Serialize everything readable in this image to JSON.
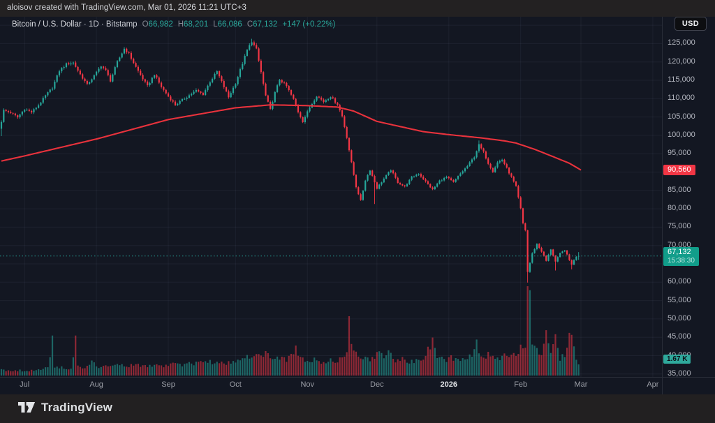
{
  "attribution": "aloisov created with TradingView.com, Mar 01, 2026 11:21 UTC+3",
  "bottom_bar": {
    "brand": "TradingView"
  },
  "currency_button": {
    "label": "USD"
  },
  "legend": {
    "title": "Bitcoin / U.S. Dollar",
    "separator": "·",
    "interval": "1D",
    "exchange": "Bitstamp",
    "ohlc": [
      [
        "O",
        "66,982"
      ],
      [
        "H",
        "68,201"
      ],
      [
        "L",
        "66,086"
      ],
      [
        "C",
        "67,132"
      ]
    ],
    "change": "+147 (+0.22%)"
  },
  "price_axis": {
    "labels": [
      {
        "text": "125,000",
        "price": 125000
      },
      {
        "text": "120,000",
        "price": 120000
      },
      {
        "text": "115,000",
        "price": 115000
      },
      {
        "text": "110,000",
        "price": 110000
      },
      {
        "text": "105,000",
        "price": 105000
      },
      {
        "text": "100,000",
        "price": 100000
      },
      {
        "text": "95,000",
        "price": 95000
      },
      {
        "text": "85,000",
        "price": 85000
      },
      {
        "text": "80,000",
        "price": 80000
      },
      {
        "text": "75,000",
        "price": 75000
      },
      {
        "text": "70,000",
        "price": 70000
      },
      {
        "text": "60,000",
        "price": 60000
      },
      {
        "text": "55,000",
        "price": 55000
      },
      {
        "text": "50,000",
        "price": 50000
      },
      {
        "text": "45,000",
        "price": 45000
      },
      {
        "text": "40,000",
        "price": 40000
      },
      {
        "text": "35,000",
        "price": 35000
      }
    ],
    "last_price_label": {
      "text": "67,132",
      "countdown": "15:38:30"
    },
    "ma_label": {
      "text": "90,560",
      "price": 90560
    },
    "volume_label": {
      "text": "1.67 K"
    }
  },
  "time_axis": {
    "labels": [
      {
        "text": "Jul",
        "day": 10
      },
      {
        "text": "Aug",
        "day": 41
      },
      {
        "text": "Sep",
        "day": 72
      },
      {
        "text": "Oct",
        "day": 101
      },
      {
        "text": "Nov",
        "day": 132
      },
      {
        "text": "Dec",
        "day": 162
      },
      {
        "text": "2026",
        "day": 193,
        "emph": true
      },
      {
        "text": "Feb",
        "day": 224
      },
      {
        "text": "Mar",
        "day": 250
      },
      {
        "text": "Apr",
        "day": 281
      }
    ]
  },
  "colors": {
    "up": "#26a69a",
    "down": "#f23645",
    "ma": "#e8323c",
    "chart_bg": "#131722",
    "outer_bg": "#232122",
    "grid": "rgba(134,146,172,0.09)",
    "separator": "#2a2e39",
    "axis_text": "#b2b5be",
    "text": "#d1d4dc",
    "vol_up": "rgba(38,166,154,0.55)",
    "vol_down": "rgba(242,54,69,0.55)",
    "label_up_bg": "#119d8a",
    "label_down_bg": "#f23645",
    "vol_label_bg": "#2fa99c",
    "price_line": "#26a69a"
  },
  "chart_data": {
    "type": "candlestick",
    "symbol": "Bitcoin / U.S. Dollar",
    "exchange": "Bitstamp",
    "interval": "1D",
    "days_total": 250,
    "y_axis": {
      "min": 35000,
      "max": 130000,
      "step": 5000,
      "grid": true
    },
    "last_candle": {
      "open": 66982,
      "high": 68201,
      "low": 66086,
      "close": 67132,
      "change": 147,
      "change_pct": 0.22
    },
    "last_price": 67132,
    "ma_last": 90560,
    "last_volume_k": 1.67,
    "price_path_keyframes": [
      [
        0,
        103.8
      ],
      [
        1,
        106.8
      ],
      [
        4,
        106.2
      ],
      [
        7,
        104.9
      ],
      [
        10,
        107.2
      ],
      [
        13,
        106.3
      ],
      [
        16,
        108.2
      ],
      [
        19,
        110.8
      ],
      [
        22,
        113.0
      ],
      [
        25,
        117.6
      ],
      [
        28,
        119.4
      ],
      [
        31,
        119.8
      ],
      [
        34,
        116.6
      ],
      [
        37,
        113.8
      ],
      [
        40,
        116.2
      ],
      [
        43,
        119.0
      ],
      [
        45,
        117.6
      ],
      [
        47,
        114.9
      ],
      [
        50,
        120.0
      ],
      [
        53,
        123.6
      ],
      [
        55,
        122.2
      ],
      [
        58,
        118.6
      ],
      [
        61,
        115.4
      ],
      [
        63,
        113.4
      ],
      [
        66,
        116.6
      ],
      [
        69,
        113.2
      ],
      [
        72,
        110.6
      ],
      [
        75,
        108.3
      ],
      [
        78,
        109.6
      ],
      [
        81,
        110.9
      ],
      [
        84,
        112.2
      ],
      [
        87,
        111.2
      ],
      [
        90,
        114.6
      ],
      [
        93,
        117.4
      ],
      [
        96,
        113.2
      ],
      [
        98,
        110.4
      ],
      [
        101,
        114.2
      ],
      [
        104,
        119.6
      ],
      [
        106,
        123.2
      ],
      [
        108,
        125.6
      ],
      [
        110,
        123.4
      ],
      [
        112,
        117.2
      ],
      [
        114,
        110.8
      ],
      [
        116,
        107.0
      ],
      [
        118,
        111.6
      ],
      [
        120,
        115.2
      ],
      [
        123,
        113.4
      ],
      [
        126,
        109.8
      ],
      [
        128,
        106.4
      ],
      [
        130,
        103.8
      ],
      [
        133,
        107.6
      ],
      [
        136,
        110.8
      ],
      [
        139,
        109.2
      ],
      [
        142,
        110.6
      ],
      [
        145,
        108.4
      ],
      [
        147,
        105.2
      ],
      [
        149,
        99.5
      ],
      [
        151,
        92.5
      ],
      [
        153,
        86.0
      ],
      [
        155,
        82.2
      ],
      [
        157,
        87.8
      ],
      [
        159,
        90.6
      ],
      [
        162,
        85.6
      ],
      [
        165,
        88.2
      ],
      [
        168,
        90.6
      ],
      [
        171,
        87.2
      ],
      [
        174,
        86.0
      ],
      [
        177,
        88.6
      ],
      [
        180,
        89.6
      ],
      [
        183,
        87.4
      ],
      [
        186,
        85.2
      ],
      [
        189,
        87.6
      ],
      [
        192,
        88.6
      ],
      [
        195,
        87.2
      ],
      [
        198,
        89.6
      ],
      [
        201,
        91.6
      ],
      [
        204,
        94.2
      ],
      [
        206,
        97.4
      ],
      [
        208,
        95.4
      ],
      [
        210,
        92.4
      ],
      [
        212,
        90.2
      ],
      [
        214,
        92.6
      ],
      [
        216,
        93.4
      ],
      [
        218,
        91.0
      ],
      [
        220,
        88.6
      ],
      [
        222,
        86.0
      ],
      [
        224,
        80.0
      ],
      [
        225,
        76.0
      ],
      [
        226,
        74.2
      ],
      [
        227,
        62.8
      ],
      [
        229,
        67.8
      ],
      [
        231,
        70.4
      ],
      [
        233,
        68.4
      ],
      [
        235,
        65.8
      ],
      [
        237,
        69.0
      ],
      [
        239,
        65.6
      ],
      [
        241,
        67.8
      ],
      [
        243,
        68.8
      ],
      [
        245,
        66.0
      ],
      [
        246,
        64.9
      ],
      [
        248,
        67.0
      ],
      [
        249,
        67.132
      ]
    ],
    "ohlc_overrides": {
      "0": {
        "open": 101800,
        "low": 99800
      },
      "108": {
        "high": 126300
      },
      "161": {
        "low": 81300
      },
      "206": {
        "high": 98600
      },
      "227": {
        "low": 59900
      },
      "239": {
        "low": 63200
      },
      "246": {
        "low": 63500
      },
      "249": {
        "open": 66982,
        "high": 68201,
        "low": 66086,
        "close": 67132
      }
    },
    "volume_profile_keyframes": [
      [
        0,
        1.1
      ],
      [
        4,
        0.7
      ],
      [
        8,
        0.9
      ],
      [
        12,
        0.8
      ],
      [
        16,
        1.1
      ],
      [
        20,
        1.4
      ],
      [
        22,
        6.0
      ],
      [
        23,
        1.6
      ],
      [
        26,
        1.4
      ],
      [
        30,
        1.2
      ],
      [
        32,
        6.0
      ],
      [
        33,
        1.5
      ],
      [
        36,
        1.3
      ],
      [
        39,
        2.6
      ],
      [
        42,
        1.5
      ],
      [
        46,
        1.7
      ],
      [
        50,
        1.9
      ],
      [
        54,
        1.6
      ],
      [
        58,
        1.9
      ],
      [
        62,
        1.6
      ],
      [
        66,
        1.9
      ],
      [
        70,
        1.6
      ],
      [
        74,
        2.3
      ],
      [
        78,
        1.9
      ],
      [
        82,
        2.1
      ],
      [
        86,
        2.4
      ],
      [
        90,
        2.5
      ],
      [
        94,
        2.1
      ],
      [
        98,
        2.3
      ],
      [
        102,
        2.6
      ],
      [
        105,
        3.0
      ],
      [
        108,
        3.7
      ],
      [
        111,
        3.3
      ],
      [
        114,
        3.9
      ],
      [
        117,
        3.3
      ],
      [
        120,
        3.1
      ],
      [
        123,
        2.7
      ],
      [
        127,
        4.5
      ],
      [
        129,
        3.0
      ],
      [
        132,
        2.5
      ],
      [
        135,
        2.9
      ],
      [
        138,
        2.4
      ],
      [
        141,
        2.7
      ],
      [
        144,
        2.6
      ],
      [
        147,
        3.2
      ],
      [
        149,
        4.2
      ],
      [
        150,
        8.9
      ],
      [
        151,
        5.0
      ],
      [
        153,
        4.2
      ],
      [
        155,
        3.6
      ],
      [
        158,
        3.1
      ],
      [
        161,
        2.7
      ],
      [
        163,
        4.5
      ],
      [
        165,
        2.7
      ],
      [
        167,
        4.4
      ],
      [
        170,
        2.4
      ],
      [
        173,
        2.9
      ],
      [
        176,
        2.3
      ],
      [
        179,
        2.7
      ],
      [
        182,
        3.1
      ],
      [
        186,
        5.7
      ],
      [
        188,
        3.3
      ],
      [
        191,
        2.7
      ],
      [
        194,
        3.1
      ],
      [
        197,
        2.5
      ],
      [
        200,
        2.9
      ],
      [
        203,
        3.5
      ],
      [
        205,
        5.4
      ],
      [
        207,
        3.7
      ],
      [
        209,
        3.1
      ],
      [
        211,
        4.1
      ],
      [
        213,
        3.3
      ],
      [
        215,
        2.9
      ],
      [
        217,
        3.5
      ],
      [
        219,
        2.9
      ],
      [
        221,
        3.7
      ],
      [
        223,
        4.5
      ],
      [
        225,
        5.1
      ],
      [
        226,
        4.9
      ],
      [
        227,
        13.4
      ],
      [
        228,
        12.8
      ],
      [
        229,
        5.3
      ],
      [
        231,
        4.7
      ],
      [
        233,
        3.5
      ],
      [
        235,
        6.8
      ],
      [
        237,
        3.7
      ],
      [
        239,
        6.2
      ],
      [
        241,
        3.1
      ],
      [
        243,
        3.5
      ],
      [
        245,
        6.4
      ],
      [
        246,
        6.1
      ],
      [
        247,
        4.6
      ],
      [
        248,
        3.0
      ],
      [
        249,
        1.67
      ]
    ],
    "volume_overrides": {
      "22": 6.0,
      "32": 6.0,
      "127": 4.5,
      "150": 8.9,
      "186": 5.7,
      "205": 5.4,
      "227": 13.4,
      "228": 12.8,
      "235": 6.8,
      "239": 6.2,
      "245": 6.4,
      "246": 6.1,
      "249": 1.67
    },
    "ma_keyframes": [
      [
        0,
        93.0
      ],
      [
        10,
        94.4
      ],
      [
        41,
        99.0
      ],
      [
        72,
        104.3
      ],
      [
        101,
        107.5
      ],
      [
        116,
        108.3
      ],
      [
        132,
        108.1
      ],
      [
        145,
        107.7
      ],
      [
        152,
        106.6
      ],
      [
        162,
        103.8
      ],
      [
        172,
        102.4
      ],
      [
        182,
        101.0
      ],
      [
        193,
        100.2
      ],
      [
        207,
        99.3
      ],
      [
        217,
        98.5
      ],
      [
        222,
        97.9
      ],
      [
        230,
        96.2
      ],
      [
        238,
        94.2
      ],
      [
        245,
        92.4
      ],
      [
        250,
        90.56
      ]
    ],
    "noise": {
      "close_amp": 0.005,
      "wick_amp": 0.006
    }
  }
}
